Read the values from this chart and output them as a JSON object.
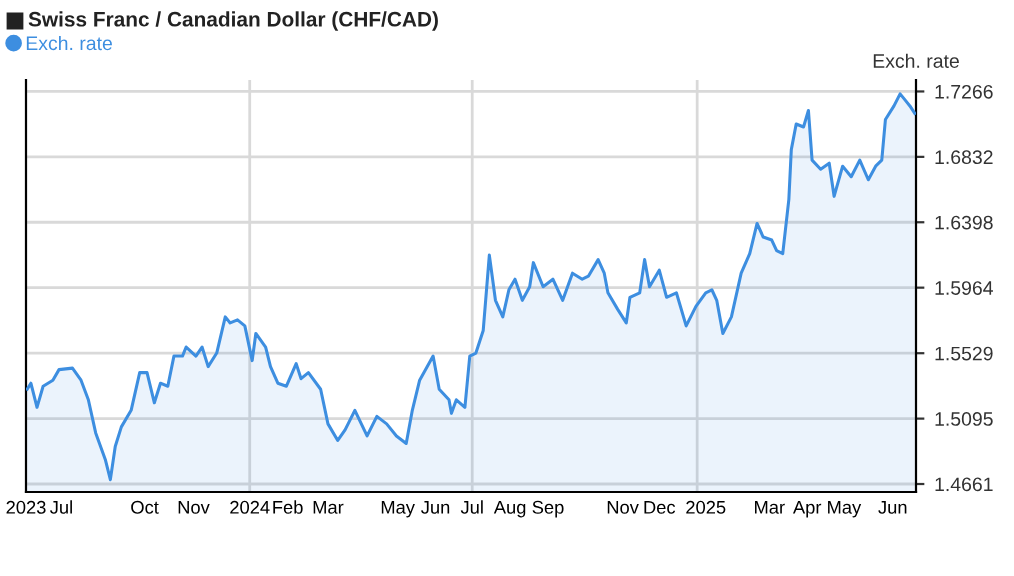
{
  "chart_data": {
    "type": "area",
    "title": "Swiss Franc / Canadian Dollar (CHF/CAD)",
    "ylabel": "Exch. rate",
    "x": [
      "2023-07-03",
      "2023-07-06",
      "2023-07-11",
      "2023-07-16",
      "2023-07-24",
      "2023-07-29",
      "2023-08-09",
      "2023-08-16",
      "2023-08-22",
      "2023-08-28",
      "2023-09-05",
      "2023-09-09",
      "2023-09-13",
      "2023-09-18",
      "2023-09-26",
      "2023-10-03",
      "2023-10-09",
      "2023-10-15",
      "2023-10-20",
      "2023-10-26",
      "2023-10-31",
      "2023-11-07",
      "2023-11-10",
      "2023-11-18",
      "2023-11-23",
      "2023-11-28",
      "2023-12-05",
      "2023-12-12",
      "2023-12-16",
      "2023-12-22",
      "2023-12-28",
      "2024-01-03",
      "2024-01-06",
      "2024-01-14",
      "2024-01-18",
      "2024-01-24",
      "2024-01-31",
      "2024-02-08",
      "2024-02-12",
      "2024-02-18",
      "2024-02-28",
      "2024-03-05",
      "2024-03-13",
      "2024-03-19",
      "2024-03-27",
      "2024-04-06",
      "2024-04-14",
      "2024-04-22",
      "2024-04-30",
      "2024-05-08",
      "2024-05-13",
      "2024-05-19",
      "2024-05-30",
      "2024-06-04",
      "2024-06-12",
      "2024-06-14",
      "2024-06-18",
      "2024-06-25",
      "2024-06-29",
      "2024-07-04",
      "2024-07-10",
      "2024-07-15",
      "2024-07-20",
      "2024-07-26",
      "2024-07-31",
      "2024-08-05",
      "2024-08-11",
      "2024-08-17",
      "2024-08-20",
      "2024-08-28",
      "2024-09-05",
      "2024-09-13",
      "2024-09-21",
      "2024-09-29",
      "2024-10-04",
      "2024-10-12",
      "2024-10-17",
      "2024-10-20",
      "2024-10-28",
      "2024-11-04",
      "2024-11-07",
      "2024-11-15",
      "2024-11-19",
      "2024-11-23",
      "2024-12-01",
      "2024-12-07",
      "2024-12-15",
      "2024-12-23",
      "2024-12-31",
      "2025-01-08",
      "2025-01-13",
      "2025-01-17",
      "2025-01-22",
      "2025-01-29",
      "2025-02-06",
      "2025-02-13",
      "2025-02-19",
      "2025-02-24",
      "2025-03-03",
      "2025-03-07",
      "2025-03-12",
      "2025-03-17",
      "2025-03-19",
      "2025-03-23",
      "2025-03-29",
      "2025-04-02",
      "2025-04-05",
      "2025-04-12",
      "2025-04-19",
      "2025-04-23",
      "2025-04-30",
      "2025-05-07",
      "2025-05-14",
      "2025-05-21",
      "2025-05-27",
      "2025-06-01",
      "2025-06-04",
      "2025-06-11",
      "2025-06-16",
      "2025-06-20",
      "2025-06-24",
      "2025-06-28"
    ],
    "series": [
      {
        "name": "Exch. rate",
        "color": "#3d8ee0",
        "values": [
          1.529,
          1.533,
          1.517,
          1.531,
          1.535,
          1.542,
          1.543,
          1.535,
          1.522,
          1.5,
          1.482,
          1.469,
          1.491,
          1.504,
          1.515,
          1.54,
          1.54,
          1.52,
          1.533,
          1.531,
          1.551,
          1.551,
          1.557,
          1.551,
          1.557,
          1.544,
          1.553,
          1.577,
          1.573,
          1.575,
          1.571,
          1.548,
          1.566,
          1.557,
          1.544,
          1.533,
          1.531,
          1.546,
          1.536,
          1.54,
          1.529,
          1.506,
          1.495,
          1.502,
          1.515,
          1.498,
          1.511,
          1.506,
          1.498,
          1.493,
          1.515,
          1.535,
          1.551,
          1.529,
          1.522,
          1.513,
          1.522,
          1.517,
          1.551,
          1.553,
          1.568,
          1.618,
          1.588,
          1.577,
          1.595,
          1.602,
          1.588,
          1.597,
          1.613,
          1.597,
          1.602,
          1.588,
          1.606,
          1.602,
          1.604,
          1.615,
          1.606,
          1.593,
          1.582,
          1.573,
          1.59,
          1.593,
          1.615,
          1.597,
          1.608,
          1.59,
          1.593,
          1.571,
          1.584,
          1.593,
          1.595,
          1.588,
          1.566,
          1.577,
          1.606,
          1.619,
          1.639,
          1.63,
          1.628,
          1.621,
          1.619,
          1.655,
          1.688,
          1.705,
          1.703,
          1.714,
          1.681,
          1.675,
          1.679,
          1.657,
          1.677,
          1.67,
          1.681,
          1.668,
          1.677,
          1.681,
          1.708,
          1.717,
          1.725,
          1.721,
          1.717,
          1.712
        ]
      }
    ],
    "xlim": [
      "2023-07-02",
      "2025-06-29"
    ],
    "xticks": [
      {
        "value": "2023-07-02",
        "label": "2023"
      },
      {
        "value": "2023-07-31",
        "label": "Jul"
      },
      {
        "value": "2023-10-07",
        "label": "Oct"
      },
      {
        "value": "2023-11-16",
        "label": "Nov"
      },
      {
        "value": "2024-01-01",
        "label": "2024"
      },
      {
        "value": "2024-02-01",
        "label": "Feb"
      },
      {
        "value": "2024-03-05",
        "label": "Mar"
      },
      {
        "value": "2024-05-01",
        "label": "May"
      },
      {
        "value": "2024-06-01",
        "label": "Jun"
      },
      {
        "value": "2024-07-01",
        "label": "Jul"
      },
      {
        "value": "2024-08-01",
        "label": "Aug"
      },
      {
        "value": "2024-09-01",
        "label": "Sep"
      },
      {
        "value": "2024-11-01",
        "label": "Nov"
      },
      {
        "value": "2024-12-01",
        "label": "Dec"
      },
      {
        "value": "2025-01-08",
        "label": "2025"
      },
      {
        "value": "2025-03-01",
        "label": "Mar"
      },
      {
        "value": "2025-04-01",
        "label": "Apr"
      },
      {
        "value": "2025-05-01",
        "label": "May"
      },
      {
        "value": "2025-06-10",
        "label": "Jun"
      }
    ],
    "ylim": [
      1.4608,
      1.7342
    ],
    "yticks": [
      1.4661,
      1.5095,
      1.5529,
      1.5964,
      1.6398,
      1.6832,
      1.7266
    ],
    "ref_lines": [
      {
        "axis": "x",
        "value": "2024-01-01",
        "label": null,
        "color": "#d9d9d9"
      },
      {
        "axis": "x",
        "value": "2024-07-01",
        "label": null,
        "color": "#d9d9d9"
      },
      {
        "axis": "x",
        "value": "2025-01-01",
        "label": null,
        "color": "#d9d9d9"
      }
    ],
    "grid": "y",
    "legend": "top left",
    "marker": "none",
    "line_style": "solid"
  }
}
